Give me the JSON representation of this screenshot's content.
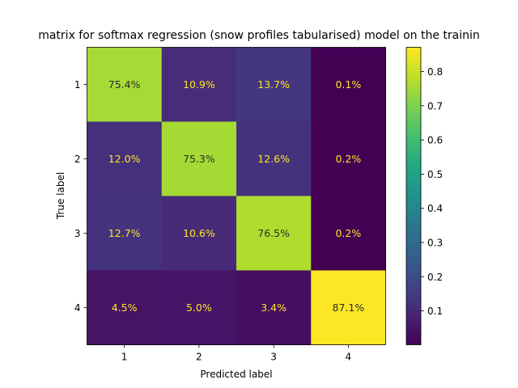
{
  "chart_data": {
    "type": "heatmap",
    "title": "matrix for softmax regression (snow profiles tabularised) model on the trainin",
    "xlabel": "Predicted label",
    "ylabel": "True label",
    "x_categories": [
      "1",
      "2",
      "3",
      "4"
    ],
    "y_categories": [
      "1",
      "2",
      "3",
      "4"
    ],
    "values": [
      [
        0.754,
        0.109,
        0.137,
        0.001
      ],
      [
        0.12,
        0.753,
        0.126,
        0.002
      ],
      [
        0.127,
        0.106,
        0.765,
        0.002
      ],
      [
        0.045,
        0.05,
        0.034,
        0.871
      ]
    ],
    "cell_labels": [
      [
        "75.4%",
        "10.9%",
        "13.7%",
        "0.1%"
      ],
      [
        "12.0%",
        "75.3%",
        "12.6%",
        "0.2%"
      ],
      [
        "12.7%",
        "10.6%",
        "76.5%",
        "0.2%"
      ],
      [
        "4.5%",
        "5.0%",
        "3.4%",
        "87.1%"
      ]
    ],
    "colormap": "viridis",
    "colorbar": {
      "range": [
        0.001,
        0.871
      ],
      "ticks": [
        0.1,
        0.2,
        0.3,
        0.4,
        0.5,
        0.6,
        0.7,
        0.8
      ],
      "tick_labels": [
        "0.1",
        "0.2",
        "0.3",
        "0.4",
        "0.5",
        "0.6",
        "0.7",
        "0.8"
      ]
    },
    "grid": false
  }
}
